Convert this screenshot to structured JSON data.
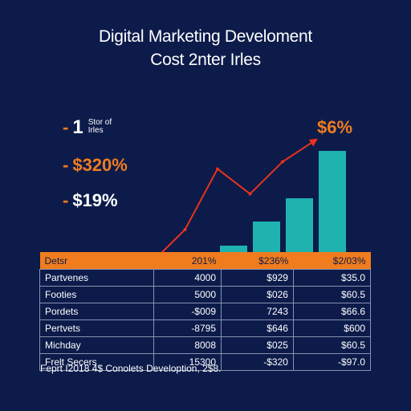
{
  "title_line1": "Digital Marketing Develoment",
  "title_line2": "Cost 2nter Irles",
  "stats": [
    {
      "dash": "-",
      "value": "1",
      "note_line1": "Stor of",
      "note_line2": "Irles"
    },
    {
      "dash": "-",
      "value": "$320%"
    },
    {
      "dash": "-",
      "value": "$19%"
    }
  ],
  "callout": "$6%",
  "colors": {
    "background": "#0c1b4a",
    "accent": "#f07c1e",
    "bars": "#1fb3b0",
    "line": "#e8321e"
  },
  "chart_data": {
    "type": "bar",
    "values": [
      8,
      38,
      67,
      126
    ],
    "ylim": [
      0,
      130
    ],
    "line_overlay": [
      {
        "x": 0,
        "y": 0
      },
      {
        "x": 1,
        "y": 45
      },
      {
        "x": 2,
        "y": 130
      },
      {
        "x": 3,
        "y": 95
      },
      {
        "x": 4,
        "y": 140
      },
      {
        "x": 5,
        "y": 170
      }
    ],
    "line_ylim": [
      0,
      180
    ]
  },
  "table": {
    "headers": [
      "Detsr",
      "201%",
      "$236%",
      "$2/03%"
    ],
    "rows": [
      [
        "Partvenes",
        "4000",
        "$929",
        "$35.0"
      ],
      [
        "Footies",
        "5000",
        "$026",
        "$60.5"
      ],
      [
        "Pordets",
        "-$009",
        "7243",
        "$66.6"
      ],
      [
        "Pertvets",
        "-8795",
        "$646",
        "$600"
      ],
      [
        "Michday",
        "8008",
        "$025",
        "$60.5"
      ],
      [
        "Frelt Secers",
        "15300",
        "-$320",
        "-$97.0"
      ]
    ]
  },
  "footer": "Feprt I2018 4$ Conolets Develoption, 2$8."
}
